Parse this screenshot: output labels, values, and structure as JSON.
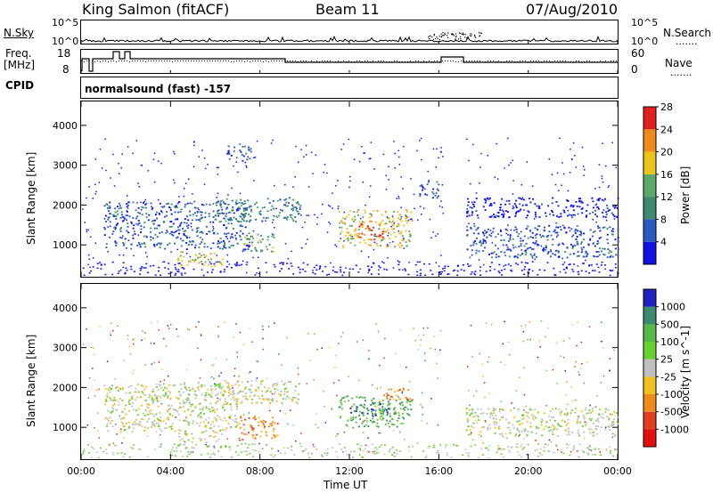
{
  "header": {
    "station": "King Salmon (fitACF)",
    "beam": "Beam 11",
    "date": "07/Aug/2010"
  },
  "side_labels": {
    "nsky": "N.Sky",
    "nsearch": "N.Search",
    "freq_line1": "Freq.",
    "freq_line2": "[MHz]",
    "nave": "Nave",
    "cpid": "CPID",
    "dots": "......."
  },
  "strip_ticks": {
    "noise_top": "10^5",
    "noise_bottom": "10^0",
    "freq_top": "18",
    "freq_bottom": "8",
    "nave_top": "60",
    "nave_bottom": "0"
  },
  "cpid_text": "normalsound (fast) -157",
  "chart_data": [
    {
      "type": "heatmap",
      "name": "power",
      "ylabel": "Slant Range [km]",
      "yticks": [
        "1000",
        "2000",
        "3000",
        "4000"
      ],
      "ylim": [
        200,
        4600
      ],
      "xlim": [
        0,
        24
      ],
      "colorbar": {
        "label": "Power [dB]",
        "ticks": [
          "4",
          "8",
          "12",
          "16",
          "20",
          "24",
          "28"
        ],
        "colors": [
          "#1010e0",
          "#2a5ac0",
          "#3d8a6e",
          "#5aa86a",
          "#ecc21c",
          "#f08a1c",
          "#e02020"
        ]
      },
      "regions": [
        {
          "t0": 1.0,
          "t1": 7.5,
          "r0": 900,
          "r1": 2100,
          "level": 1
        },
        {
          "t0": 4.3,
          "t1": 6.3,
          "r0": 450,
          "r1": 850,
          "level": 4
        },
        {
          "t0": 6.0,
          "t1": 9.8,
          "r0": 1600,
          "r1": 2200,
          "level": 2
        },
        {
          "t0": 7.2,
          "t1": 8.6,
          "r0": 800,
          "r1": 1300,
          "level": 3
        },
        {
          "t0": 6.5,
          "t1": 7.6,
          "r0": 3100,
          "r1": 3500,
          "level": 1
        },
        {
          "t0": 11.5,
          "t1": 14.8,
          "r0": 950,
          "r1": 1900,
          "level": 4
        },
        {
          "t0": 12.3,
          "t1": 13.5,
          "r0": 1150,
          "r1": 1550,
          "level": 6
        },
        {
          "t0": 15.0,
          "t1": 16.0,
          "r0": 2200,
          "r1": 2600,
          "level": 1
        },
        {
          "t0": 17.2,
          "t1": 24.0,
          "r0": 700,
          "r1": 1500,
          "level": 1
        },
        {
          "t0": 17.2,
          "t1": 24.0,
          "r0": 1700,
          "r1": 2200,
          "level": 0
        }
      ]
    },
    {
      "type": "heatmap",
      "name": "velocity",
      "ylabel": "Slant Range [km]",
      "yticks": [
        "1000",
        "2000",
        "3000",
        "4000"
      ],
      "ylim": [
        200,
        4600
      ],
      "xlim": [
        0,
        24
      ],
      "xticks": [
        "00:00",
        "04:00",
        "08:00",
        "12:00",
        "16:00",
        "20:00",
        "00:00"
      ],
      "xlabel": "Time UT",
      "colorbar": {
        "label": "Velocity [m s^-1]",
        "ticks": [
          "1000",
          "500",
          "100",
          "25",
          "-25",
          "-100",
          "-500",
          "-1000"
        ],
        "colors": [
          "#2020c0",
          "#3d8a6e",
          "#5ab84a",
          "#6ad030",
          "#c0c0c0",
          "#f0c020",
          "#f08a1c",
          "#e04020",
          "#e01010"
        ]
      },
      "regions": [
        {
          "t0": 1.0,
          "t1": 7.0,
          "r0": 900,
          "r1": 2100,
          "level": 4
        },
        {
          "t0": 4.3,
          "t1": 6.3,
          "r0": 500,
          "r1": 900,
          "level": 4
        },
        {
          "t0": 7.0,
          "t1": 8.8,
          "r0": 700,
          "r1": 1300,
          "level": 6
        },
        {
          "t0": 11.5,
          "t1": 14.8,
          "r0": 1000,
          "r1": 1800,
          "level": 2
        },
        {
          "t0": 12.0,
          "t1": 14.0,
          "r0": 1300,
          "r1": 1700,
          "level": 1
        },
        {
          "t0": 13.5,
          "t1": 15.0,
          "r0": 1700,
          "r1": 2000,
          "level": 6
        },
        {
          "t0": 17.2,
          "t1": 24.0,
          "r0": 800,
          "r1": 1500,
          "level": 4
        },
        {
          "t0": 6.0,
          "t1": 9.8,
          "r0": 1600,
          "r1": 2200,
          "level": 4
        }
      ]
    }
  ]
}
